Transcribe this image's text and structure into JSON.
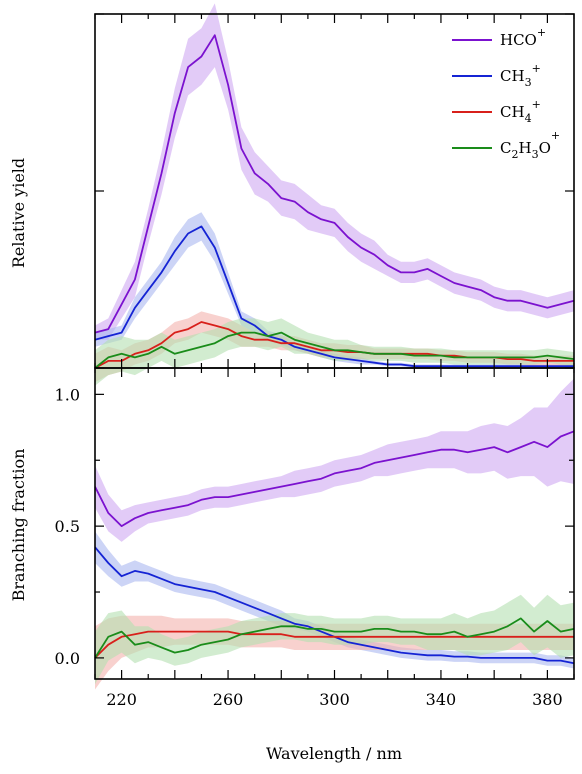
{
  "chart_data": [
    {
      "type": "line",
      "panel": "top",
      "ylabel": "Relative yield",
      "xlim": [
        210,
        390
      ],
      "ylim": [
        0,
        1
      ],
      "yticks_labeled": false,
      "grid": false,
      "legend": {
        "placement": "top-right",
        "entries": [
          {
            "series": "HCO+",
            "main": "HCO",
            "sub": "",
            "tail": "",
            "sup": "+"
          },
          {
            "series": "CH3+",
            "main": "CH",
            "sub": "3",
            "tail": "",
            "sup": "+"
          },
          {
            "series": "CH4+",
            "main": "CH",
            "sub": "4",
            "tail": "",
            "sup": "+"
          },
          {
            "series": "C2H3O+",
            "main": "C",
            "sub": "2",
            "tail": "H",
            "sub2": "3",
            "tail2": "O",
            "sup": "+"
          }
        ]
      },
      "x": [
        210,
        215,
        220,
        225,
        230,
        235,
        240,
        245,
        250,
        255,
        260,
        265,
        270,
        275,
        280,
        285,
        290,
        295,
        300,
        305,
        310,
        315,
        320,
        325,
        330,
        335,
        340,
        345,
        350,
        355,
        360,
        365,
        370,
        375,
        380,
        385,
        390
      ],
      "series": [
        {
          "name": "HCO+",
          "color": "#7b12cf",
          "band_color": "#cfa8f2",
          "values": [
            0.1,
            0.11,
            0.18,
            0.25,
            0.4,
            0.55,
            0.72,
            0.85,
            0.88,
            0.94,
            0.8,
            0.62,
            0.55,
            0.52,
            0.48,
            0.47,
            0.44,
            0.42,
            0.41,
            0.37,
            0.34,
            0.32,
            0.29,
            0.27,
            0.27,
            0.28,
            0.26,
            0.24,
            0.23,
            0.22,
            0.2,
            0.19,
            0.19,
            0.18,
            0.17,
            0.18,
            0.19
          ],
          "band": [
            0.02,
            0.03,
            0.04,
            0.05,
            0.05,
            0.06,
            0.07,
            0.08,
            0.08,
            0.09,
            0.07,
            0.06,
            0.06,
            0.05,
            0.05,
            0.05,
            0.05,
            0.04,
            0.04,
            0.04,
            0.04,
            0.04,
            0.03,
            0.03,
            0.03,
            0.03,
            0.03,
            0.03,
            0.03,
            0.03,
            0.03,
            0.03,
            0.03,
            0.03,
            0.03,
            0.03,
            0.03
          ]
        },
        {
          "name": "CH3+",
          "color": "#1524d4",
          "band_color": "#aab8f0",
          "values": [
            0.08,
            0.09,
            0.1,
            0.17,
            0.22,
            0.27,
            0.33,
            0.38,
            0.4,
            0.34,
            0.24,
            0.14,
            0.12,
            0.09,
            0.08,
            0.06,
            0.05,
            0.04,
            0.03,
            0.025,
            0.02,
            0.015,
            0.01,
            0.01,
            0.005,
            0.005,
            0.005,
            0.005,
            0.005,
            0.005,
            0.005,
            0.005,
            0.005,
            0.005,
            0.005,
            0.005,
            0.005
          ],
          "band": [
            0.02,
            0.02,
            0.02,
            0.03,
            0.03,
            0.03,
            0.04,
            0.04,
            0.04,
            0.04,
            0.03,
            0.02,
            0.02,
            0.015,
            0.015,
            0.01,
            0.01,
            0.01,
            0.01,
            0.01,
            0.01,
            0.005,
            0.005,
            0.005,
            0.005,
            0.005,
            0.005,
            0.005,
            0.005,
            0.005,
            0.005,
            0.005,
            0.005,
            0.005,
            0.005,
            0.005,
            0.005
          ]
        },
        {
          "name": "CH4+",
          "color": "#d8201b",
          "band_color": "#f4b3ae",
          "values": [
            0.0,
            0.02,
            0.02,
            0.04,
            0.05,
            0.07,
            0.1,
            0.11,
            0.13,
            0.12,
            0.11,
            0.09,
            0.08,
            0.08,
            0.07,
            0.07,
            0.06,
            0.05,
            0.05,
            0.045,
            0.045,
            0.04,
            0.04,
            0.04,
            0.04,
            0.04,
            0.035,
            0.035,
            0.03,
            0.03,
            0.03,
            0.025,
            0.025,
            0.02,
            0.02,
            0.02,
            0.02
          ],
          "band": [
            0.04,
            0.04,
            0.03,
            0.03,
            0.03,
            0.03,
            0.03,
            0.03,
            0.03,
            0.03,
            0.03,
            0.03,
            0.02,
            0.02,
            0.02,
            0.02,
            0.02,
            0.02,
            0.02,
            0.02,
            0.02,
            0.015,
            0.015,
            0.015,
            0.015,
            0.015,
            0.015,
            0.015,
            0.015,
            0.015,
            0.015,
            0.015,
            0.015,
            0.015,
            0.015,
            0.015,
            0.015
          ]
        },
        {
          "name": "C2H3O+",
          "color": "#1a8c1a",
          "band_color": "#b4dfb0",
          "values": [
            0.0,
            0.03,
            0.04,
            0.03,
            0.04,
            0.06,
            0.04,
            0.05,
            0.06,
            0.07,
            0.09,
            0.1,
            0.1,
            0.09,
            0.1,
            0.08,
            0.07,
            0.06,
            0.05,
            0.05,
            0.045,
            0.04,
            0.04,
            0.04,
            0.035,
            0.035,
            0.035,
            0.03,
            0.03,
            0.03,
            0.03,
            0.03,
            0.03,
            0.03,
            0.035,
            0.03,
            0.025
          ],
          "band": [
            0.05,
            0.05,
            0.05,
            0.05,
            0.04,
            0.04,
            0.04,
            0.04,
            0.04,
            0.04,
            0.04,
            0.04,
            0.04,
            0.04,
            0.04,
            0.04,
            0.03,
            0.03,
            0.03,
            0.03,
            0.02,
            0.02,
            0.02,
            0.02,
            0.02,
            0.02,
            0.02,
            0.02,
            0.02,
            0.02,
            0.02,
            0.02,
            0.02,
            0.02,
            0.02,
            0.02,
            0.02
          ]
        }
      ]
    },
    {
      "type": "line",
      "panel": "bottom",
      "xlabel": "Wavelength / nm",
      "ylabel": "Branching fraction",
      "xlim": [
        210,
        390
      ],
      "ylim": [
        -0.08,
        1.1
      ],
      "xticks": [
        "220",
        "260",
        "300",
        "340",
        "380"
      ],
      "yticks": [
        "0.0",
        "0.5",
        "1.0"
      ],
      "grid": false,
      "x": [
        210,
        215,
        220,
        225,
        230,
        235,
        240,
        245,
        250,
        255,
        260,
        265,
        270,
        275,
        280,
        285,
        290,
        295,
        300,
        305,
        310,
        315,
        320,
        325,
        330,
        335,
        340,
        345,
        350,
        355,
        360,
        365,
        370,
        375,
        380,
        385,
        390
      ],
      "series": [
        {
          "name": "HCO+",
          "color": "#7b12cf",
          "band_color": "#cfa8f2",
          "values": [
            0.65,
            0.55,
            0.5,
            0.53,
            0.55,
            0.56,
            0.57,
            0.58,
            0.6,
            0.61,
            0.61,
            0.62,
            0.63,
            0.64,
            0.65,
            0.66,
            0.67,
            0.68,
            0.7,
            0.71,
            0.72,
            0.74,
            0.75,
            0.76,
            0.77,
            0.78,
            0.79,
            0.79,
            0.78,
            0.79,
            0.8,
            0.78,
            0.8,
            0.82,
            0.8,
            0.84,
            0.86
          ],
          "band": [
            0.08,
            0.07,
            0.06,
            0.05,
            0.04,
            0.04,
            0.04,
            0.04,
            0.04,
            0.04,
            0.04,
            0.04,
            0.04,
            0.04,
            0.04,
            0.05,
            0.05,
            0.05,
            0.05,
            0.05,
            0.05,
            0.05,
            0.06,
            0.06,
            0.06,
            0.06,
            0.07,
            0.07,
            0.08,
            0.09,
            0.09,
            0.1,
            0.11,
            0.13,
            0.15,
            0.17,
            0.2
          ]
        },
        {
          "name": "CH3+",
          "color": "#1524d4",
          "band_color": "#aab8f0",
          "values": [
            0.42,
            0.36,
            0.31,
            0.33,
            0.32,
            0.3,
            0.28,
            0.27,
            0.26,
            0.25,
            0.23,
            0.21,
            0.19,
            0.17,
            0.15,
            0.13,
            0.12,
            0.1,
            0.08,
            0.06,
            0.05,
            0.04,
            0.03,
            0.02,
            0.015,
            0.01,
            0.01,
            0.005,
            0.005,
            0.0,
            0.0,
            0.0,
            0.0,
            0.0,
            -0.01,
            -0.01,
            -0.02
          ],
          "band": [
            0.06,
            0.05,
            0.04,
            0.04,
            0.03,
            0.03,
            0.03,
            0.03,
            0.03,
            0.03,
            0.03,
            0.03,
            0.03,
            0.03,
            0.03,
            0.02,
            0.02,
            0.02,
            0.02,
            0.02,
            0.02,
            0.02,
            0.02,
            0.02,
            0.02,
            0.02,
            0.02,
            0.02,
            0.02,
            0.02,
            0.02,
            0.02,
            0.02,
            0.02,
            0.02,
            0.02,
            0.02
          ]
        },
        {
          "name": "CH4+",
          "color": "#d8201b",
          "band_color": "#f4b3ae",
          "values": [
            0.0,
            0.05,
            0.08,
            0.09,
            0.1,
            0.1,
            0.1,
            0.1,
            0.1,
            0.1,
            0.1,
            0.09,
            0.09,
            0.09,
            0.09,
            0.08,
            0.08,
            0.08,
            0.08,
            0.08,
            0.08,
            0.08,
            0.08,
            0.08,
            0.08,
            0.08,
            0.08,
            0.08,
            0.08,
            0.08,
            0.08,
            0.08,
            0.08,
            0.08,
            0.08,
            0.08,
            0.08
          ],
          "band": [
            0.12,
            0.1,
            0.08,
            0.07,
            0.06,
            0.06,
            0.05,
            0.05,
            0.05,
            0.05,
            0.05,
            0.05,
            0.05,
            0.05,
            0.05,
            0.05,
            0.05,
            0.05,
            0.05,
            0.05,
            0.05,
            0.05,
            0.05,
            0.05,
            0.05,
            0.05,
            0.05,
            0.05,
            0.05,
            0.05,
            0.05,
            0.05,
            0.05,
            0.05,
            0.05,
            0.05,
            0.05
          ]
        },
        {
          "name": "C2H3O+",
          "color": "#1a8c1a",
          "band_color": "#b4dfb0",
          "values": [
            0.0,
            0.08,
            0.1,
            0.05,
            0.06,
            0.04,
            0.02,
            0.03,
            0.05,
            0.06,
            0.07,
            0.09,
            0.1,
            0.11,
            0.12,
            0.12,
            0.11,
            0.11,
            0.1,
            0.1,
            0.1,
            0.11,
            0.11,
            0.1,
            0.1,
            0.09,
            0.09,
            0.1,
            0.08,
            0.09,
            0.1,
            0.12,
            0.15,
            0.1,
            0.14,
            0.1,
            0.11
          ],
          "band": [
            0.1,
            0.09,
            0.08,
            0.07,
            0.06,
            0.05,
            0.05,
            0.05,
            0.05,
            0.05,
            0.05,
            0.05,
            0.05,
            0.05,
            0.05,
            0.05,
            0.05,
            0.05,
            0.05,
            0.05,
            0.05,
            0.05,
            0.05,
            0.05,
            0.05,
            0.06,
            0.06,
            0.07,
            0.07,
            0.08,
            0.08,
            0.09,
            0.09,
            0.09,
            0.1,
            0.1,
            0.1
          ]
        }
      ]
    }
  ]
}
